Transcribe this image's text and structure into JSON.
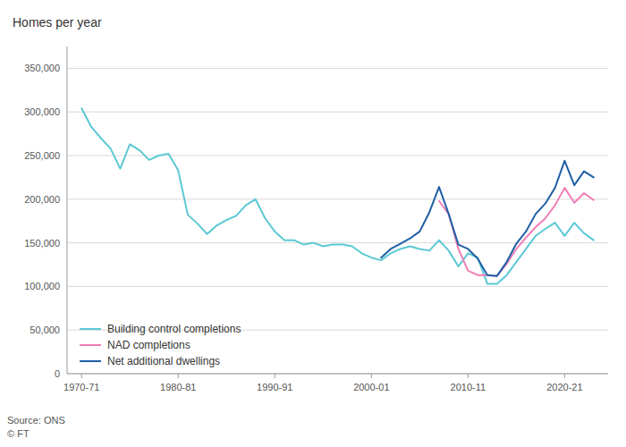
{
  "chart_data": {
    "type": "line",
    "title": "Homes per year",
    "source": "Source: ONS\n© FT",
    "xlim": [
      1968.5,
      2024.5
    ],
    "xticks": [
      {
        "value": 1970,
        "label": "1970-71"
      },
      {
        "value": 1980,
        "label": "1980-81"
      },
      {
        "value": 1990,
        "label": "1990-91"
      },
      {
        "value": 2000,
        "label": "2000-01"
      },
      {
        "value": 2010,
        "label": "2010-11"
      },
      {
        "value": 2020,
        "label": "2020-21"
      }
    ],
    "ylim": [
      0,
      375000
    ],
    "yticks": [
      0,
      {
        "value": 50000,
        "label": "50,000"
      },
      {
        "value": 100000,
        "label": "100,000"
      },
      {
        "value": 150000,
        "label": "150,000"
      },
      {
        "value": 200000,
        "label": "200,000"
      },
      {
        "value": 250000,
        "label": "250,000"
      },
      {
        "value": 300000,
        "label": "300,000"
      },
      {
        "value": 350000,
        "label": "350,000"
      }
    ],
    "grid": true,
    "legend": "lower left",
    "series": [
      {
        "name": "Building control completions",
        "color": "#5bc8d5",
        "x": [
          1970,
          1971,
          1972,
          1973,
          1974,
          1975,
          1976,
          1977,
          1978,
          1979,
          1980,
          1981,
          1982,
          1983,
          1984,
          1985,
          1986,
          1987,
          1988,
          1989,
          1990,
          1991,
          1992,
          1993,
          1994,
          1995,
          1996,
          1997,
          1998,
          1999,
          2000,
          2001,
          2002,
          2003,
          2004,
          2005,
          2006,
          2007,
          2008,
          2009,
          2010,
          2011,
          2012,
          2013,
          2014,
          2015,
          2016,
          2017,
          2018,
          2019,
          2020,
          2021,
          2022,
          2023
        ],
        "values": [
          304000,
          283000,
          270000,
          258000,
          235000,
          263000,
          256000,
          245000,
          250000,
          252000,
          233000,
          182000,
          172000,
          160000,
          170000,
          176000,
          181000,
          193000,
          200000,
          178000,
          163000,
          153000,
          153000,
          148000,
          150000,
          146000,
          148000,
          148000,
          146000,
          138000,
          133000,
          130000,
          138000,
          143000,
          146000,
          143000,
          141000,
          153000,
          141000,
          123000,
          138000,
          133000,
          103000,
          103000,
          113000,
          128000,
          143000,
          158000,
          166000,
          173000,
          158000,
          173000,
          161000,
          153000
        ]
      },
      {
        "name": "NAD completions",
        "color": "#f07eb6",
        "x": [
          2007,
          2008,
          2009,
          2010,
          2011,
          2012,
          2013,
          2014,
          2015,
          2016,
          2017,
          2018,
          2019,
          2020,
          2021,
          2022,
          2023
        ],
        "values": [
          198000,
          183000,
          143000,
          118000,
          113000,
          113000,
          112000,
          126000,
          143000,
          156000,
          168000,
          178000,
          193000,
          213000,
          196000,
          207000,
          199000
        ]
      },
      {
        "name": "Net additional dwellings",
        "color": "#1f5fa6",
        "x": [
          2001,
          2002,
          2003,
          2004,
          2005,
          2006,
          2007,
          2008,
          2009,
          2010,
          2011,
          2012,
          2013,
          2014,
          2015,
          2016,
          2017,
          2018,
          2019,
          2020,
          2021,
          2022,
          2023
        ],
        "values": [
          133000,
          143000,
          149000,
          155000,
          163000,
          185000,
          214000,
          183000,
          148000,
          143000,
          132000,
          113000,
          112000,
          128000,
          149000,
          163000,
          183000,
          195000,
          213000,
          244000,
          216000,
          232000,
          225000
        ]
      }
    ]
  }
}
